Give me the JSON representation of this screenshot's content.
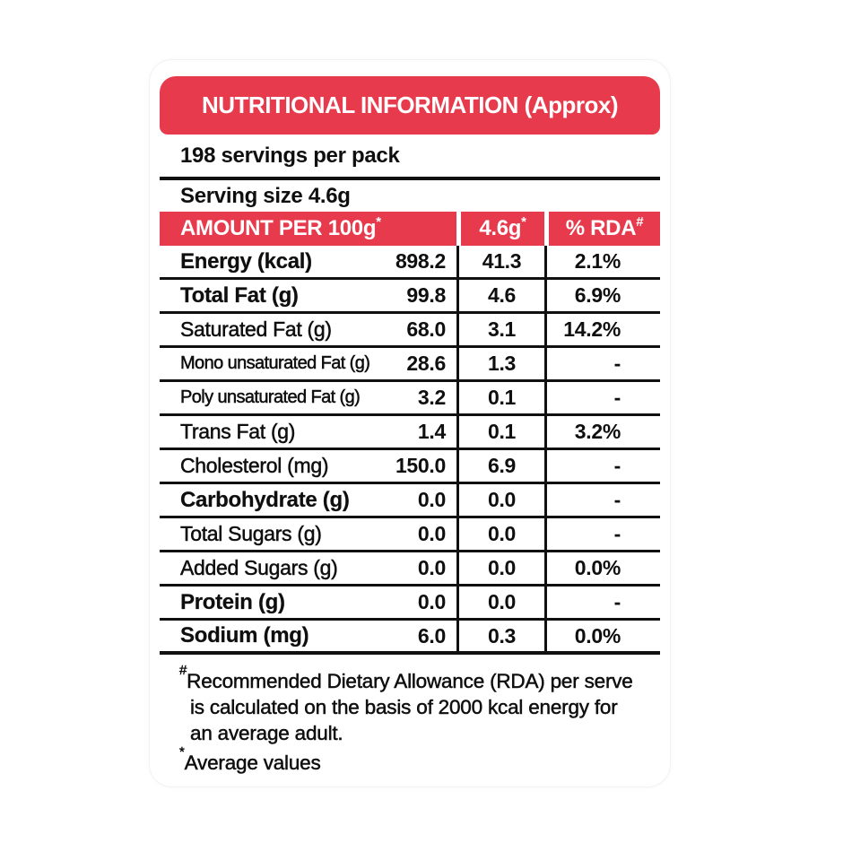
{
  "panel": {
    "accent_color": "#e73b4d",
    "title": "NUTRITIONAL INFORMATION (Approx)",
    "servings_line": "198 servings per pack",
    "serving_size_line": "Serving size 4.6g",
    "columns": {
      "amount_label": "AMOUNT PER 100g",
      "amount_sup": "*",
      "serve_label": "4.6g",
      "serve_sup": "*",
      "rda_label": "% RDA",
      "rda_sup": "#"
    },
    "rows": [
      {
        "label": "Energy (kcal)",
        "per_100g": "898.2",
        "per_serve": "41.3",
        "rda": "2.1%"
      },
      {
        "label": "Total Fat (g)",
        "per_100g": "99.8",
        "per_serve": "4.6",
        "rda": "6.9%"
      },
      {
        "label": "Saturated Fat (g)",
        "per_100g": "68.0",
        "per_serve": "3.1",
        "rda": "14.2%"
      },
      {
        "label": "Mono unsaturated Fat (g)",
        "per_100g": "28.6",
        "per_serve": "1.3",
        "rda": "-"
      },
      {
        "label": "Poly unsaturated Fat (g)",
        "per_100g": "3.2",
        "per_serve": "0.1",
        "rda": "-"
      },
      {
        "label": "Trans Fat (g)",
        "per_100g": "1.4",
        "per_serve": "0.1",
        "rda": "3.2%"
      },
      {
        "label": "Cholesterol (mg)",
        "per_100g": "150.0",
        "per_serve": "6.9",
        "rda": "-"
      },
      {
        "label": "Carbohydrate (g)",
        "per_100g": "0.0",
        "per_serve": "0.0",
        "rda": "-"
      },
      {
        "label": "Total Sugars (g)",
        "per_100g": "0.0",
        "per_serve": "0.0",
        "rda": "-"
      },
      {
        "label": "Added Sugars (g)",
        "per_100g": "0.0",
        "per_serve": "0.0",
        "rda": "0.0%"
      },
      {
        "label": "Protein (g)",
        "per_100g": "0.0",
        "per_serve": "0.0",
        "rda": "-"
      },
      {
        "label": "Sodium (mg)",
        "per_100g": "6.0",
        "per_serve": "0.3",
        "rda": "0.0%"
      }
    ],
    "footnotes": {
      "rda_sup": "#",
      "rda_lines": [
        "Recommended Dietary Allowance (RDA) per serve",
        "is calculated on the basis of 2000 kcal energy for",
        "an average adult."
      ],
      "avg_sup": "*",
      "avg_text": "Average values"
    }
  }
}
